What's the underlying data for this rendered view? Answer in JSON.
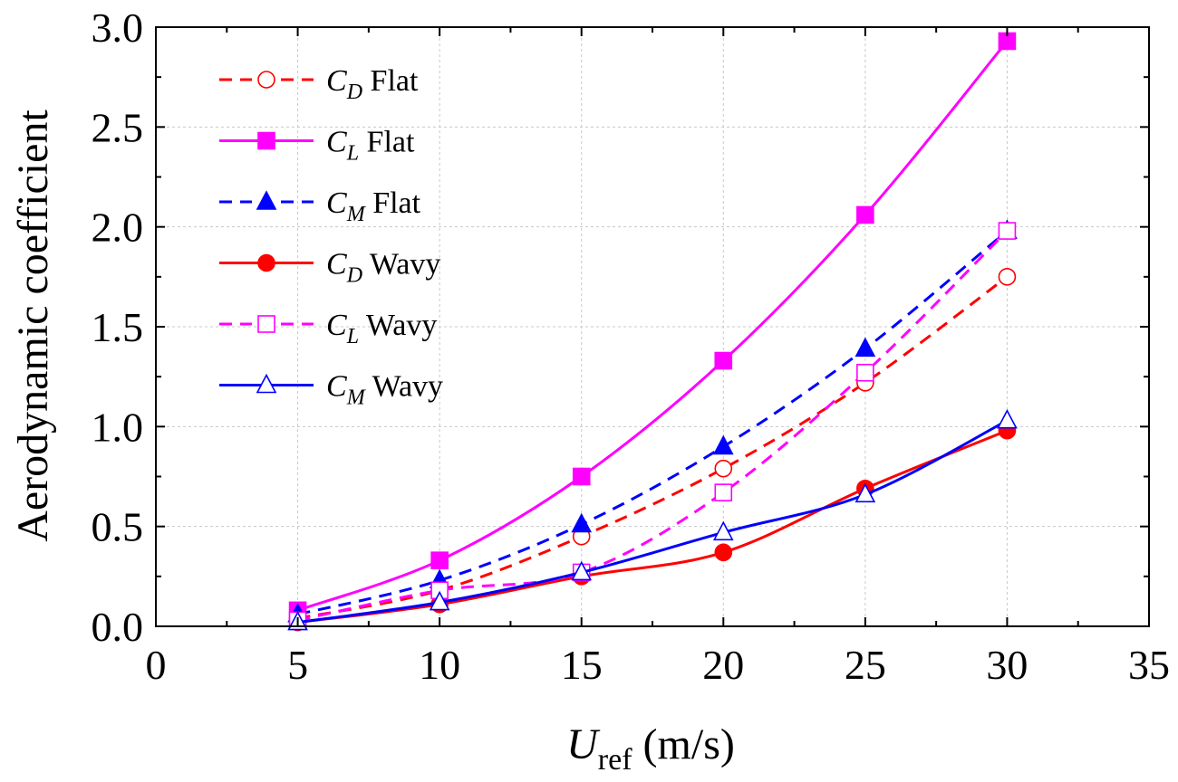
{
  "chart_data": {
    "type": "line",
    "title": "",
    "xlabel": {
      "main": "U",
      "sub": "ref",
      "unit": " (m/s)"
    },
    "ylabel": "Aerodynamic coefficient",
    "xlim": [
      0,
      35
    ],
    "ylim": [
      0,
      3.0
    ],
    "xticks": [
      0,
      5,
      10,
      15,
      20,
      25,
      30,
      35
    ],
    "xtick_labels": [
      "0",
      "5",
      "10",
      "15",
      "20",
      "25",
      "30",
      "35"
    ],
    "yticks": [
      0,
      0.5,
      1.0,
      1.5,
      2.0,
      2.5,
      3.0
    ],
    "ytick_labels": [
      "0.0",
      "0.5",
      "1.0",
      "1.5",
      "2.0",
      "2.5",
      "3.0"
    ],
    "grid": true,
    "legend_position": "top-left",
    "x": [
      5,
      10,
      15,
      20,
      25,
      30
    ],
    "series": [
      {
        "name": "CD Flat",
        "symbol": "C",
        "sub": "D",
        "suffix": " Flat",
        "color": "#ff0000",
        "dash": "dashed",
        "marker": "circle",
        "filled": false,
        "values": [
          0.04,
          0.18,
          0.45,
          0.79,
          1.22,
          1.75
        ]
      },
      {
        "name": "CL Flat",
        "symbol": "C",
        "sub": "L",
        "suffix": " Flat",
        "color": "#ff00ff",
        "dash": "solid",
        "marker": "square",
        "filled": true,
        "values": [
          0.08,
          0.33,
          0.75,
          1.33,
          2.06,
          2.93
        ]
      },
      {
        "name": "CM Flat",
        "symbol": "C",
        "sub": "M",
        "suffix": " Flat",
        "color": "#0000ff",
        "dash": "dashed",
        "marker": "triangle",
        "filled": true,
        "values": [
          0.06,
          0.23,
          0.51,
          0.9,
          1.39,
          1.98
        ]
      },
      {
        "name": "CD Wavy",
        "symbol": "C",
        "sub": "D",
        "suffix": " Wavy",
        "color": "#ff0000",
        "dash": "solid",
        "marker": "circle",
        "filled": true,
        "values": [
          0.02,
          0.11,
          0.25,
          0.37,
          0.69,
          0.98
        ]
      },
      {
        "name": "CL Wavy",
        "symbol": "C",
        "sub": "L",
        "suffix": " Wavy",
        "color": "#ff00ff",
        "dash": "dashed",
        "marker": "square",
        "filled": false,
        "values": [
          0.03,
          0.18,
          0.27,
          0.67,
          1.27,
          1.98
        ]
      },
      {
        "name": "CM Wavy",
        "symbol": "C",
        "sub": "M",
        "suffix": " Wavy",
        "color": "#0000ff",
        "dash": "solid",
        "marker": "triangle",
        "filled": false,
        "values": [
          0.02,
          0.12,
          0.27,
          0.47,
          0.66,
          1.03
        ]
      }
    ]
  }
}
